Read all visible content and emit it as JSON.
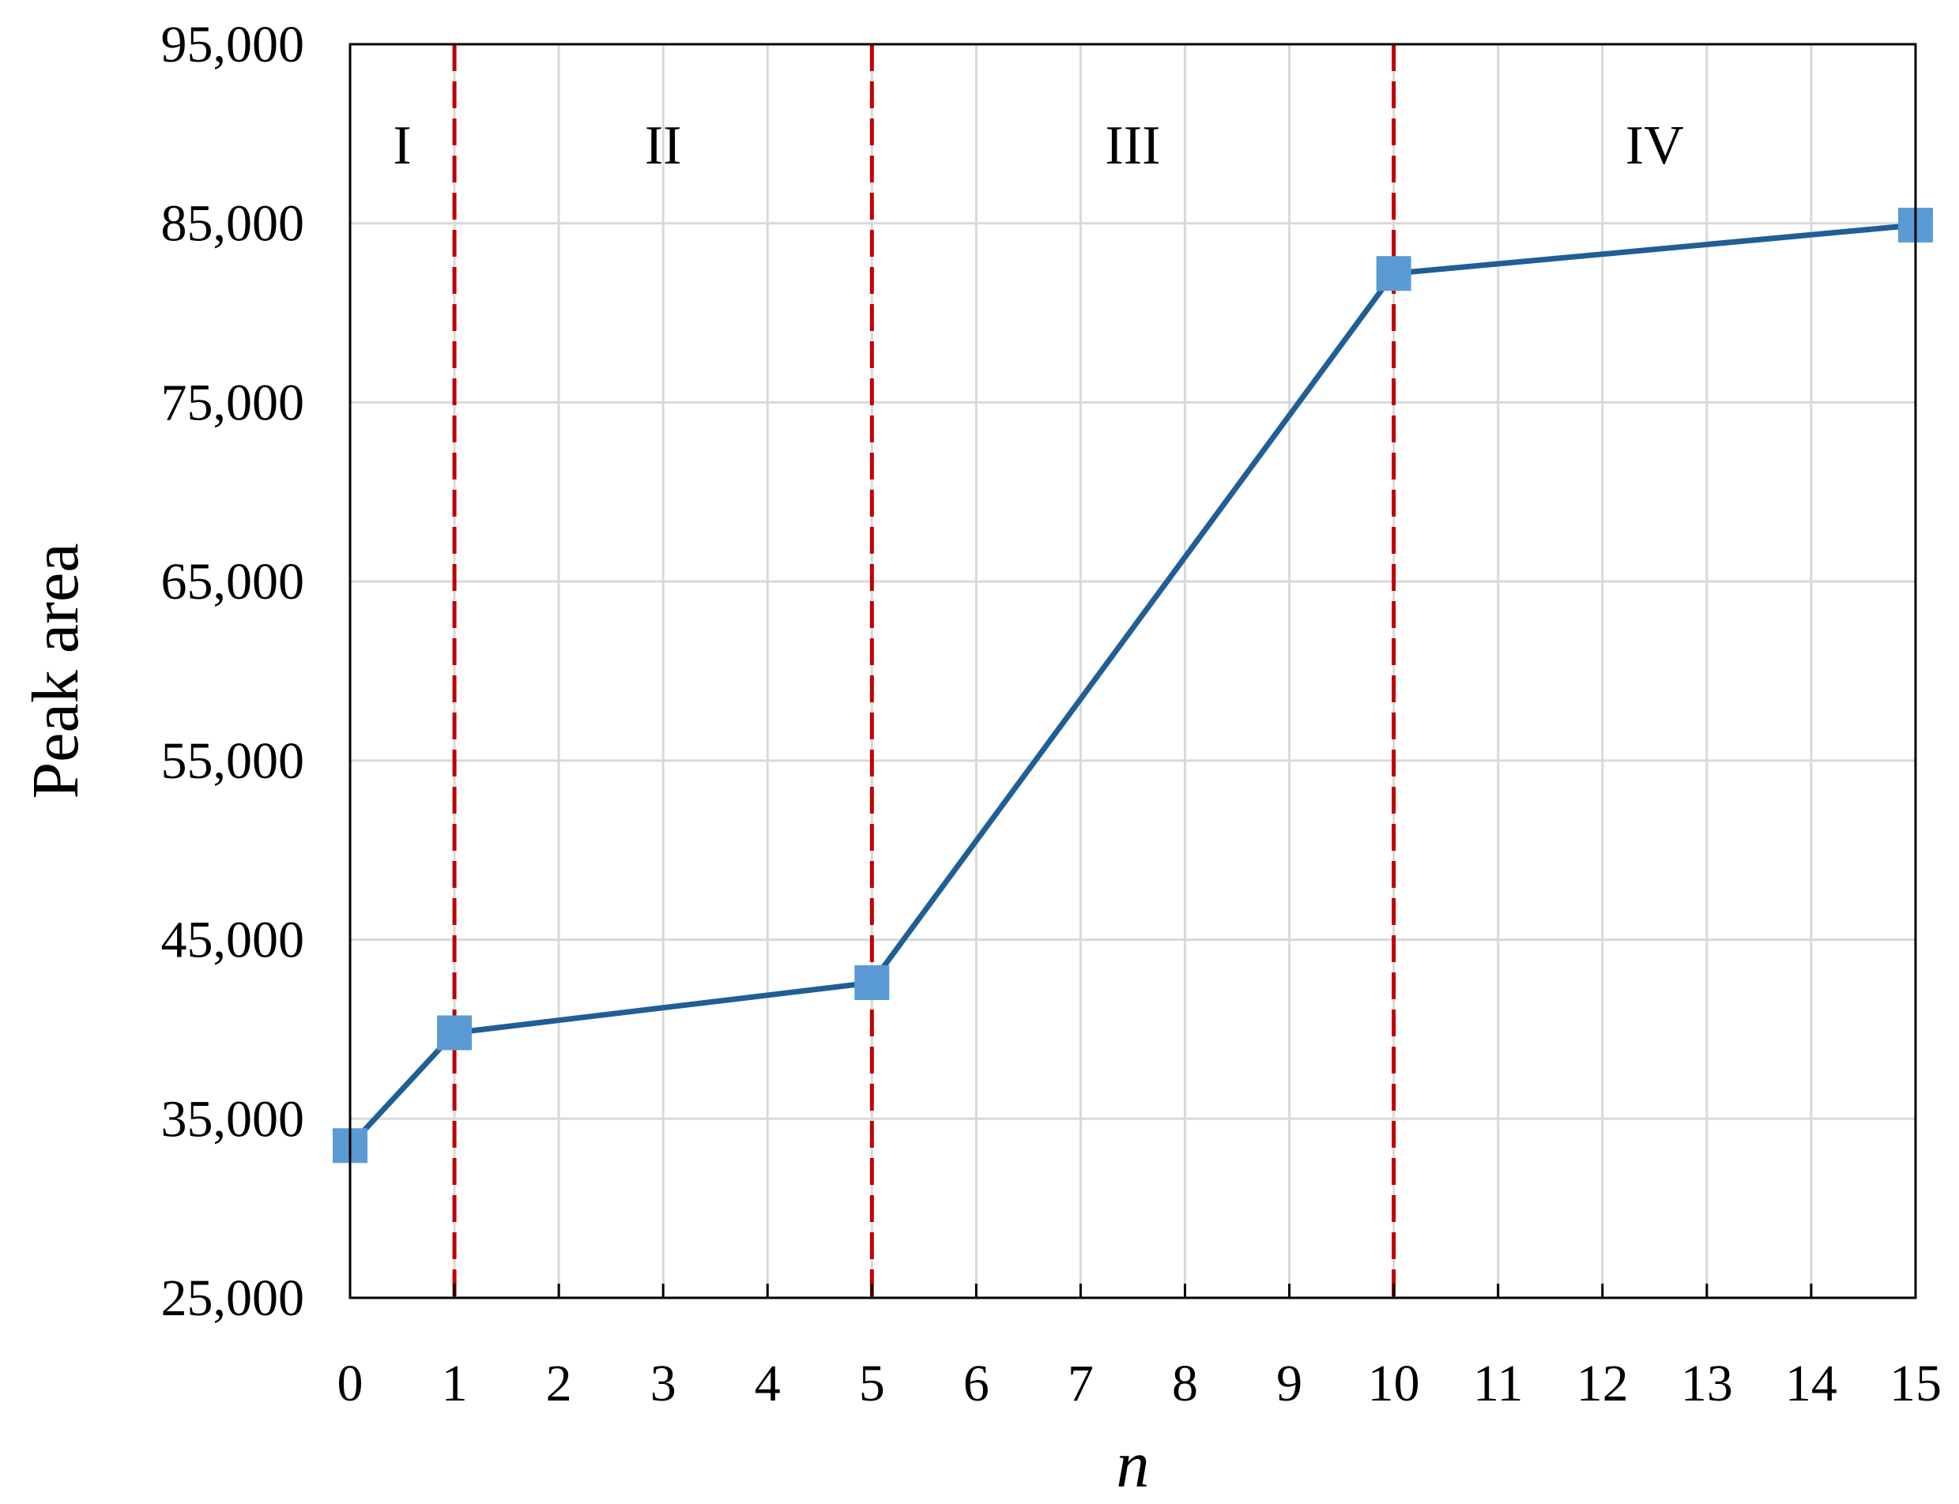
{
  "chart_data": {
    "type": "line",
    "title": "",
    "xlabel": "n",
    "ylabel": "Peak area",
    "xlim": [
      0,
      15
    ],
    "ylim": [
      25000,
      95000
    ],
    "x_ticks": [
      "0",
      "1",
      "2",
      "3",
      "4",
      "5",
      "6",
      "7",
      "8",
      "9",
      "10",
      "11",
      "12",
      "13",
      "14",
      "15"
    ],
    "y_ticks": [
      {
        "value": 25000,
        "label": "25,000"
      },
      {
        "value": 35000,
        "label": "35,000"
      },
      {
        "value": 45000,
        "label": "45,000"
      },
      {
        "value": 55000,
        "label": "55,000"
      },
      {
        "value": 65000,
        "label": "65,000"
      },
      {
        "value": 75000,
        "label": "75,000"
      },
      {
        "value": 85000,
        "label": "85,000"
      },
      {
        "value": 95000,
        "label": "95,000"
      }
    ],
    "grid": true,
    "legend": "none",
    "series": [
      {
        "x": [
          0,
          1,
          5,
          10,
          15
        ],
        "y": [
          33500,
          39800,
          42600,
          82200,
          84900
        ],
        "color": "#1f5f95",
        "marker_color": "#5b9bd5",
        "marker": "square"
      }
    ],
    "region_dividers": {
      "x": [
        1,
        5,
        10
      ],
      "color": "#c00000",
      "style": "dashed"
    },
    "region_labels": [
      {
        "text": "I",
        "x": 0.5
      },
      {
        "text": "II",
        "x": 3
      },
      {
        "text": "III",
        "x": 7.5
      },
      {
        "text": "IV",
        "x": 12.5
      }
    ]
  }
}
